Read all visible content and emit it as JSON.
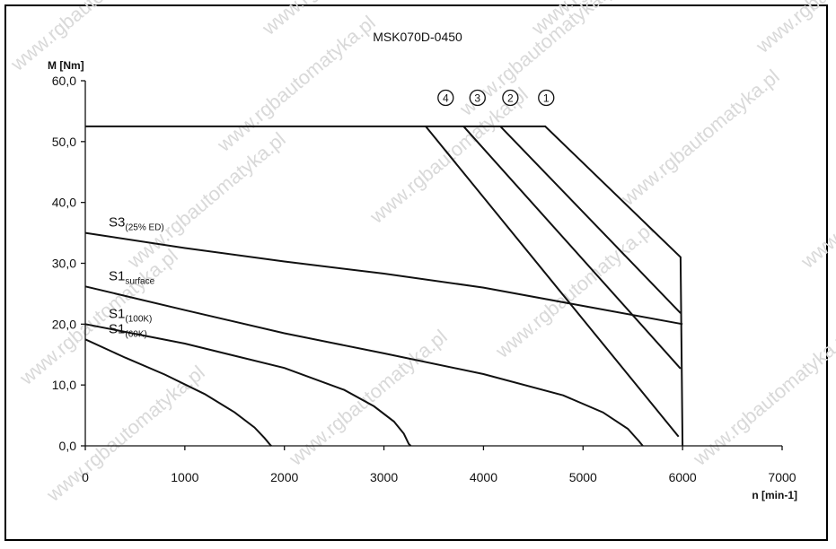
{
  "chart_data": {
    "type": "line",
    "title": "MSK070D-0450",
    "ylabel": "M [Nm]",
    "xlabel": "n [min-1]",
    "xlim": [
      0,
      7000
    ],
    "ylim": [
      0,
      60
    ],
    "x_ticks": [
      "0",
      "1000",
      "2000",
      "3000",
      "4000",
      "5000",
      "6000",
      "7000"
    ],
    "y_ticks": [
      "0,0",
      "10,0",
      "20,0",
      "30,0",
      "40,0",
      "50,0",
      "60,0"
    ],
    "grid": false,
    "series": [
      {
        "name": "S1(60K)",
        "label_main": "S1",
        "label_sub": "(60K)",
        "x": [
          0,
          400,
          800,
          1200,
          1500,
          1700,
          1800,
          1860,
          1870
        ],
        "y": [
          17.5,
          14.5,
          11.7,
          8.5,
          5.5,
          3.0,
          1.3,
          0.1,
          0
        ]
      },
      {
        "name": "S1(100K)",
        "label_main": "S1",
        "label_sub": "(100K)",
        "x": [
          0,
          1000,
          2000,
          2600,
          2900,
          3100,
          3200,
          3250,
          3270
        ],
        "y": [
          20,
          16.8,
          12.8,
          9.2,
          6.5,
          4.0,
          2.0,
          0.3,
          0
        ]
      },
      {
        "name": "S1surface",
        "label_main": "S1",
        "label_sub": "surface",
        "x": [
          0,
          1000,
          2000,
          3000,
          4000,
          4800,
          5200,
          5450,
          5560,
          5600
        ],
        "y": [
          26.2,
          22.3,
          18.5,
          15.2,
          11.8,
          8.3,
          5.5,
          2.8,
          0.8,
          0
        ]
      },
      {
        "name": "S3(25% ED)",
        "label_main": "S3",
        "label_sub": "(25% ED)",
        "x": [
          0,
          1000,
          2000,
          3000,
          4000,
          5000,
          6000
        ],
        "y": [
          35.0,
          32.5,
          30.3,
          28.3,
          26.0,
          23.0,
          20.0
        ]
      },
      {
        "name": "1",
        "x": [
          0,
          4620,
          5980,
          6000
        ],
        "y": [
          52.5,
          52.5,
          31.0,
          0
        ]
      },
      {
        "name": "2",
        "x": [
          4170,
          5980
        ],
        "y": [
          52.5,
          21.8
        ]
      },
      {
        "name": "3",
        "x": [
          3800,
          5980
        ],
        "y": [
          52.5,
          12.7
        ]
      },
      {
        "name": "4",
        "x": [
          3420,
          5960
        ],
        "y": [
          52.5,
          1.5
        ]
      }
    ],
    "markers": [
      {
        "text": "1",
        "x": 4630,
        "y": 57.2
      },
      {
        "text": "2",
        "x": 4270,
        "y": 57.2
      },
      {
        "text": "3",
        "x": 3940,
        "y": 57.2
      },
      {
        "text": "4",
        "x": 3620,
        "y": 57.2
      }
    ]
  },
  "watermark": "www.rgbautomatyka.pl"
}
